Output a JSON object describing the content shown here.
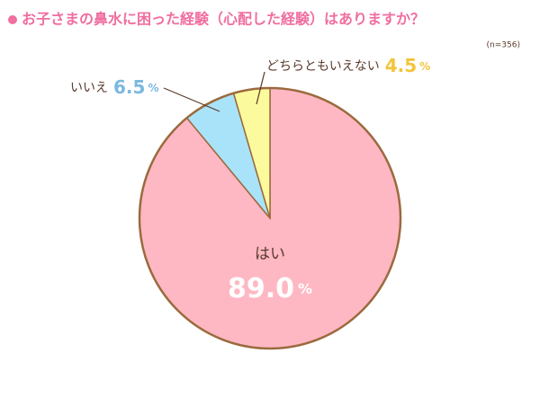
{
  "chart_data": {
    "type": "pie",
    "title": "お子さまの鼻水に困った経験（心配した経験）はありますか？",
    "note": "(n=356)",
    "categories": [
      "はい",
      "いいえ",
      "どちらともいえない"
    ],
    "values": [
      89.0,
      6.5,
      4.5
    ],
    "value_labels": [
      "89.0",
      "6.5",
      "4.5"
    ],
    "unit": "%",
    "colors": [
      "#feb8c3",
      "#a9e3f9",
      "#fbfa9c"
    ],
    "label_colors": [
      "#ffffff",
      "#7ab8e0",
      "#f2c53a"
    ]
  }
}
